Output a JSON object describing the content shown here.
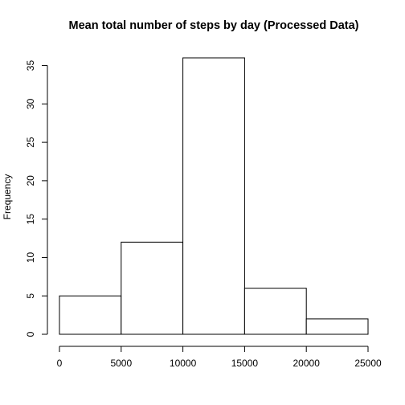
{
  "chart_data": {
    "type": "bar",
    "title": "Mean total number of steps by day (Processed Data)",
    "xlabel": "",
    "ylabel": "Frequency",
    "bins": [
      {
        "from": 0,
        "to": 5000,
        "count": 5
      },
      {
        "from": 5000,
        "to": 10000,
        "count": 12
      },
      {
        "from": 10000,
        "to": 15000,
        "count": 36
      },
      {
        "from": 15000,
        "to": 20000,
        "count": 6
      },
      {
        "from": 20000,
        "to": 25000,
        "count": 2
      }
    ],
    "xlim": [
      0,
      25000
    ],
    "ylim": [
      0,
      36
    ],
    "x_ticks": [
      0,
      5000,
      10000,
      15000,
      20000,
      25000
    ],
    "y_ticks": [
      0,
      5,
      10,
      15,
      20,
      25,
      30,
      35
    ],
    "grid": false,
    "legend": "none",
    "colors": {
      "bar_fill": "#ffffff",
      "bar_stroke": "#000000",
      "axis": "#000000"
    }
  }
}
